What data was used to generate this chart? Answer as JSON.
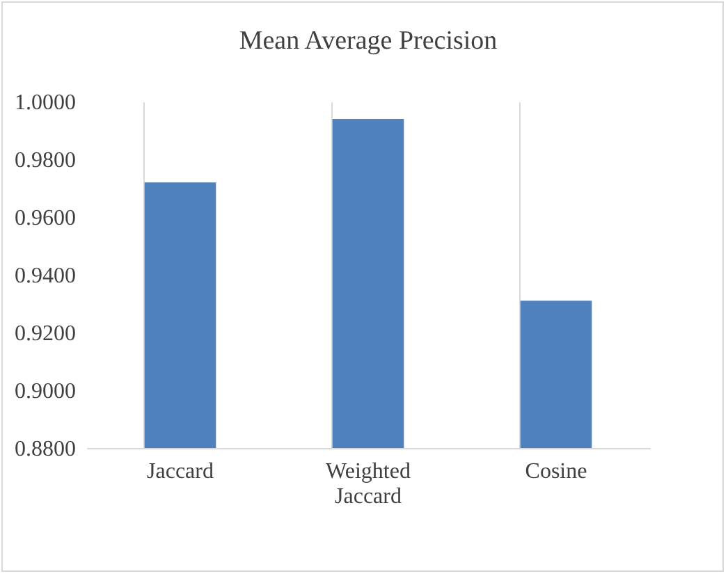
{
  "chart_data": {
    "type": "bar",
    "title": "Mean Average Precision",
    "categories": [
      "Jaccard",
      "Weighted Jaccard",
      "Cosine"
    ],
    "values": [
      0.972,
      0.994,
      0.931
    ],
    "color": "#4f81bd",
    "ylim": [
      0.88,
      1.0
    ],
    "yticks": [
      {
        "value": 0.88,
        "label": "0.8800"
      },
      {
        "value": 0.9,
        "label": "0.9000"
      },
      {
        "value": 0.92,
        "label": "0.9200"
      },
      {
        "value": 0.94,
        "label": "0.9400"
      },
      {
        "value": 0.96,
        "label": "0.9600"
      },
      {
        "value": 0.98,
        "label": "0.9800"
      },
      {
        "value": 1.0,
        "label": "1.0000"
      }
    ],
    "grid": "x"
  }
}
